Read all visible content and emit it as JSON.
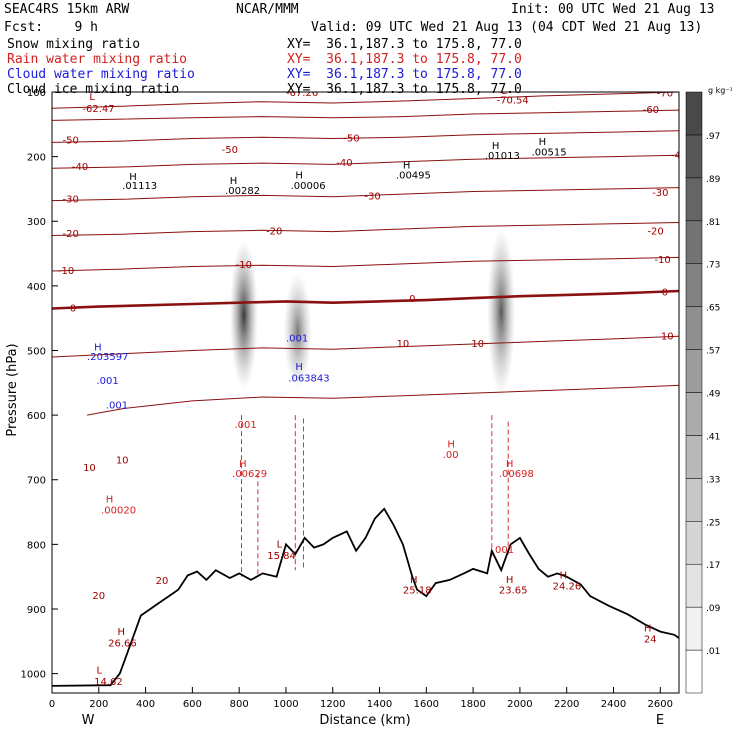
{
  "header": {
    "model": "SEAC4RS 15km ARW",
    "org": "NCAR/MMM",
    "init": "Init: 00 UTC Wed 21 Aug 13",
    "fcst": "Fcst:    9 h",
    "valid": "Valid: 09 UTC Wed 21 Aug 13 (04 CDT Wed 21 Aug 13)"
  },
  "fields": [
    {
      "name": "Snow mixing ratio",
      "xy": "XY=  36.1,187.3 to 175.8, 77.0",
      "color": "#000000"
    },
    {
      "name": "Rain water mixing ratio",
      "xy": "XY=  36.1,187.3 to 175.8, 77.0",
      "color": "#d42020"
    },
    {
      "name": "Cloud water mixing ratio",
      "xy": "XY=  36.1,187.3 to 175.8, 77.0",
      "color": "#1a1ad8"
    },
    {
      "name": "Cloud ice mixing ratio",
      "xy": "XY=  36.1,187.3 to 175.8, 77.0",
      "color": "#000000"
    }
  ],
  "chart_data": {
    "type": "cross-section",
    "xlabel": "Distance (km)",
    "ylabel": "Pressure (hPa)",
    "xlim": [
      0,
      2680
    ],
    "ylim": [
      1030,
      100
    ],
    "xticks": [
      0,
      200,
      400,
      600,
      800,
      1000,
      1200,
      1400,
      1600,
      1800,
      2000,
      2200,
      2400,
      2600
    ],
    "yticks": [
      1000,
      900,
      800,
      700,
      600,
      500,
      400,
      300,
      200,
      100
    ],
    "ytick_labels": [
      "1000",
      "900",
      "800",
      "700",
      "600",
      "500",
      "400",
      "300",
      "200",
      "100"
    ],
    "x_end_labels": {
      "left": "W",
      "right": "E"
    },
    "colorbar": {
      "unit": "g kg⁻¹",
      "labels": [
        ".01",
        ".09",
        ".17",
        ".25",
        ".33",
        ".41",
        ".49",
        ".57",
        ".65",
        ".73",
        ".81",
        ".89",
        ".97"
      ],
      "colors": [
        "#ffffff",
        "#f1f1f1",
        "#e3e3e3",
        "#d5d5d5",
        "#c7c7c7",
        "#b9b9b9",
        "#ababab",
        "#9d9d9d",
        "#8f8f8f",
        "#818181",
        "#737373",
        "#656565",
        "#575757",
        "#494949"
      ]
    },
    "isotherms": [
      {
        "value": -70,
        "label": "-70",
        "points": [
          [
            0,
            125
          ],
          [
            300,
            122
          ],
          [
            600,
            118
          ],
          [
            900,
            115
          ],
          [
            1200,
            117
          ],
          [
            1500,
            114
          ],
          [
            1800,
            110
          ],
          [
            2100,
            106
          ],
          [
            2400,
            103
          ],
          [
            2680,
            100
          ]
        ]
      },
      {
        "value": -60,
        "label": "-60",
        "points": [
          [
            0,
            144
          ],
          [
            300,
            142
          ],
          [
            600,
            140
          ],
          [
            900,
            138
          ],
          [
            1200,
            140
          ],
          [
            1500,
            138
          ],
          [
            1800,
            134
          ],
          [
            2100,
            132
          ],
          [
            2400,
            130
          ],
          [
            2680,
            128
          ]
        ]
      },
      {
        "value": -50,
        "label": "-50",
        "points": [
          [
            0,
            178
          ],
          [
            300,
            176
          ],
          [
            600,
            172
          ],
          [
            900,
            170
          ],
          [
            1200,
            172
          ],
          [
            1500,
            170
          ],
          [
            1800,
            166
          ],
          [
            2100,
            164
          ],
          [
            2400,
            162
          ],
          [
            2680,
            160
          ]
        ]
      },
      {
        "value": -40,
        "label": "-40",
        "points": [
          [
            0,
            218
          ],
          [
            300,
            216
          ],
          [
            600,
            212
          ],
          [
            900,
            210
          ],
          [
            1200,
            212
          ],
          [
            1500,
            208
          ],
          [
            1800,
            204
          ],
          [
            2100,
            202
          ],
          [
            2400,
            200
          ],
          [
            2680,
            198
          ]
        ]
      },
      {
        "value": -30,
        "label": "-30",
        "points": [
          [
            0,
            268
          ],
          [
            300,
            266
          ],
          [
            600,
            262
          ],
          [
            900,
            260
          ],
          [
            1200,
            262
          ],
          [
            1500,
            258
          ],
          [
            1800,
            254
          ],
          [
            2100,
            252
          ],
          [
            2400,
            250
          ],
          [
            2680,
            248
          ]
        ]
      },
      {
        "value": -20,
        "label": "-20",
        "points": [
          [
            0,
            322
          ],
          [
            300,
            320
          ],
          [
            600,
            316
          ],
          [
            900,
            314
          ],
          [
            1200,
            316
          ],
          [
            1500,
            312
          ],
          [
            1800,
            308
          ],
          [
            2100,
            306
          ],
          [
            2400,
            304
          ],
          [
            2680,
            302
          ]
        ]
      },
      {
        "value": -10,
        "label": "-10",
        "points": [
          [
            0,
            377
          ],
          [
            300,
            374
          ],
          [
            600,
            370
          ],
          [
            900,
            368
          ],
          [
            1200,
            370
          ],
          [
            1500,
            366
          ],
          [
            1800,
            362
          ],
          [
            2100,
            360
          ],
          [
            2400,
            358
          ],
          [
            2680,
            356
          ]
        ]
      },
      {
        "value": 0,
        "label": "0",
        "points": [
          [
            0,
            435
          ],
          [
            200,
            432
          ],
          [
            400,
            430
          ],
          [
            600,
            428
          ],
          [
            800,
            426
          ],
          [
            1000,
            424
          ],
          [
            1200,
            426
          ],
          [
            1400,
            424
          ],
          [
            1600,
            422
          ],
          [
            1800,
            419
          ],
          [
            2000,
            416
          ],
          [
            2200,
            414
          ],
          [
            2400,
            412
          ],
          [
            2680,
            408
          ]
        ]
      },
      {
        "value": 10,
        "label": "10",
        "points": [
          [
            0,
            510
          ],
          [
            300,
            505
          ],
          [
            600,
            500
          ],
          [
            900,
            496
          ],
          [
            1200,
            498
          ],
          [
            1500,
            494
          ],
          [
            1800,
            490
          ],
          [
            2100,
            486
          ],
          [
            2400,
            482
          ],
          [
            2680,
            478
          ]
        ]
      },
      {
        "value": 20,
        "label": "20",
        "points": [
          [
            150,
            600
          ],
          [
            300,
            590
          ],
          [
            600,
            578
          ],
          [
            900,
            572
          ],
          [
            1200,
            574
          ],
          [
            1500,
            570
          ],
          [
            1800,
            566
          ],
          [
            2100,
            562
          ],
          [
            2400,
            558
          ],
          [
            2680,
            554
          ]
        ]
      }
    ],
    "terrain": [
      [
        0,
        1019
      ],
      [
        250,
        1018
      ],
      [
        290,
        1000
      ],
      [
        330,
        960
      ],
      [
        380,
        910
      ],
      [
        420,
        900
      ],
      [
        460,
        890
      ],
      [
        500,
        880
      ],
      [
        540,
        870
      ],
      [
        580,
        848
      ],
      [
        620,
        842
      ],
      [
        660,
        855
      ],
      [
        700,
        840
      ],
      [
        760,
        852
      ],
      [
        800,
        845
      ],
      [
        850,
        855
      ],
      [
        900,
        845
      ],
      [
        960,
        850
      ],
      [
        1000,
        800
      ],
      [
        1040,
        815
      ],
      [
        1080,
        790
      ],
      [
        1120,
        805
      ],
      [
        1160,
        800
      ],
      [
        1200,
        790
      ],
      [
        1260,
        780
      ],
      [
        1300,
        810
      ],
      [
        1340,
        790
      ],
      [
        1380,
        760
      ],
      [
        1420,
        745
      ],
      [
        1460,
        770
      ],
      [
        1500,
        800
      ],
      [
        1540,
        850
      ],
      [
        1560,
        870
      ],
      [
        1600,
        880
      ],
      [
        1640,
        860
      ],
      [
        1700,
        855
      ],
      [
        1760,
        845
      ],
      [
        1800,
        838
      ],
      [
        1860,
        845
      ],
      [
        1880,
        810
      ],
      [
        1920,
        840
      ],
      [
        1960,
        800
      ],
      [
        2000,
        790
      ],
      [
        2040,
        815
      ],
      [
        2080,
        838
      ],
      [
        2120,
        850
      ],
      [
        2160,
        845
      ],
      [
        2200,
        850
      ],
      [
        2260,
        862
      ],
      [
        2300,
        880
      ],
      [
        2380,
        895
      ],
      [
        2460,
        908
      ],
      [
        2540,
        925
      ],
      [
        2600,
        935
      ],
      [
        2660,
        940
      ],
      [
        2680,
        945
      ]
    ],
    "annotations": [
      {
        "text": "L",
        "x": 160,
        "y": 112,
        "color": "#a00000"
      },
      {
        "text": "-62.47",
        "x": 130,
        "y": 131,
        "color": "#a00000"
      },
      {
        "text": "-67.26",
        "x": 1000,
        "y": 106,
        "color": "#a00000"
      },
      {
        "text": "L",
        "x": 1920,
        "y": 103,
        "color": "#a00000"
      },
      {
        "text": "-70.54",
        "x": 1900,
        "y": 118,
        "color": "#a00000"
      },
      {
        "text": "H",
        "x": 330,
        "y": 236,
        "color": "#000"
      },
      {
        "text": ".01113",
        "x": 300,
        "y": 250,
        "color": "#000"
      },
      {
        "text": "H",
        "x": 760,
        "y": 242,
        "color": "#000"
      },
      {
        "text": ".00282",
        "x": 740,
        "y": 258,
        "color": "#000"
      },
      {
        "text": "H",
        "x": 1040,
        "y": 234,
        "color": "#000"
      },
      {
        "text": ".00006",
        "x": 1020,
        "y": 250,
        "color": "#000"
      },
      {
        "text": "H",
        "x": 1500,
        "y": 218,
        "color": "#000"
      },
      {
        "text": ".00495",
        "x": 1470,
        "y": 234,
        "color": "#000"
      },
      {
        "text": "H",
        "x": 1880,
        "y": 188,
        "color": "#000"
      },
      {
        "text": ".01013",
        "x": 1850,
        "y": 204,
        "color": "#000"
      },
      {
        "text": "H",
        "x": 2080,
        "y": 182,
        "color": "#000"
      },
      {
        "text": ".00515",
        "x": 2050,
        "y": 198,
        "color": "#000"
      },
      {
        "text": "H",
        "x": 180,
        "y": 500,
        "color": "#1a1ad8"
      },
      {
        "text": ".203597",
        "x": 150,
        "y": 515,
        "color": "#1a1ad8"
      },
      {
        "text": ".001",
        "x": 190,
        "y": 552,
        "color": "#1a1ad8"
      },
      {
        "text": ".001",
        "x": 230,
        "y": 590,
        "color": "#1a1ad8"
      },
      {
        "text": ".001",
        "x": 1000,
        "y": 486,
        "color": "#1a1ad8"
      },
      {
        "text": "H",
        "x": 1040,
        "y": 530,
        "color": "#1a1ad8"
      },
      {
        "text": ".063843",
        "x": 1010,
        "y": 548,
        "color": "#1a1ad8"
      },
      {
        "text": ".001",
        "x": 780,
        "y": 620,
        "color": "#d42020"
      },
      {
        "text": "H",
        "x": 800,
        "y": 680,
        "color": "#d42020"
      },
      {
        "text": ".00629",
        "x": 770,
        "y": 696,
        "color": "#d42020"
      },
      {
        "text": "H",
        "x": 230,
        "y": 735,
        "color": "#d42020"
      },
      {
        "text": ".00020",
        "x": 210,
        "y": 752,
        "color": "#d42020"
      },
      {
        "text": "H",
        "x": 1690,
        "y": 650,
        "color": "#d42020"
      },
      {
        "text": ".00",
        "x": 1670,
        "y": 666,
        "color": "#d42020"
      },
      {
        "text": "H",
        "x": 1940,
        "y": 680,
        "color": "#d42020"
      },
      {
        "text": ".00698",
        "x": 1910,
        "y": 696,
        "color": "#d42020"
      },
      {
        "text": ".001",
        "x": 1880,
        "y": 813,
        "color": "#d42020"
      },
      {
        "text": "L",
        "x": 960,
        "y": 805,
        "color": "#a00000"
      },
      {
        "text": "15.84",
        "x": 920,
        "y": 823,
        "color": "#a00000"
      },
      {
        "text": "H",
        "x": 1530,
        "y": 860,
        "color": "#a00000"
      },
      {
        "text": "25.18",
        "x": 1500,
        "y": 876,
        "color": "#a00000"
      },
      {
        "text": "H",
        "x": 1940,
        "y": 860,
        "color": "#a00000"
      },
      {
        "text": "23.65",
        "x": 1910,
        "y": 876,
        "color": "#a00000"
      },
      {
        "text": "H",
        "x": 2170,
        "y": 853,
        "color": "#a00000"
      },
      {
        "text": "24.26",
        "x": 2140,
        "y": 870,
        "color": "#a00000"
      },
      {
        "text": "H",
        "x": 280,
        "y": 940,
        "color": "#a00000"
      },
      {
        "text": "26.66",
        "x": 240,
        "y": 958,
        "color": "#a00000"
      },
      {
        "text": "L",
        "x": 190,
        "y": 1000,
        "color": "#a00000"
      },
      {
        "text": "14.62",
        "x": 180,
        "y": 1018,
        "color": "#a00000"
      },
      {
        "text": "H",
        "x": 2530,
        "y": 935,
        "color": "#a00000"
      },
      {
        "text": "24",
        "x": 2530,
        "y": 952,
        "color": "#a00000"
      }
    ],
    "isotherm_labels": [
      {
        "text": "-50",
        "x": 80,
        "y": 175
      },
      {
        "text": "-40",
        "x": 120,
        "y": 216
      },
      {
        "text": "-30",
        "x": 80,
        "y": 266
      },
      {
        "text": "-20",
        "x": 80,
        "y": 320
      },
      {
        "text": "-10",
        "x": 60,
        "y": 377
      },
      {
        "text": "0",
        "x": 90,
        "y": 435
      },
      {
        "text": "10",
        "x": 160,
        "y": 682
      },
      {
        "text": "10",
        "x": 300,
        "y": 670
      },
      {
        "text": "20",
        "x": 200,
        "y": 880
      },
      {
        "text": "20",
        "x": 470,
        "y": 857
      },
      {
        "text": "-50",
        "x": 760,
        "y": 190
      },
      {
        "text": "-50",
        "x": 1280,
        "y": 172
      },
      {
        "text": "-40",
        "x": 1250,
        "y": 210
      },
      {
        "text": "-40",
        "x": 2680,
        "y": 198
      },
      {
        "text": "-30",
        "x": 1370,
        "y": 262
      },
      {
        "text": "-30",
        "x": 2600,
        "y": 256
      },
      {
        "text": "-20",
        "x": 950,
        "y": 316
      },
      {
        "text": "-20",
        "x": 2580,
        "y": 316
      },
      {
        "text": "-10",
        "x": 2610,
        "y": 360
      },
      {
        "text": "-10",
        "x": 820,
        "y": 368
      },
      {
        "text": "0",
        "x": 1540,
        "y": 420
      },
      {
        "text": "0",
        "x": 2620,
        "y": 410
      },
      {
        "text": "10",
        "x": 1500,
        "y": 490
      },
      {
        "text": "10",
        "x": 1820,
        "y": 490
      },
      {
        "text": "10",
        "x": 2630,
        "y": 478
      },
      {
        "text": "-70",
        "x": 2620,
        "y": 102
      },
      {
        "text": "-60",
        "x": 2560,
        "y": 128
      }
    ],
    "shading_columns": [
      {
        "x": 820,
        "top": 330,
        "bottom": 560,
        "peak": 0.97
      },
      {
        "x": 1050,
        "top": 380,
        "bottom": 560,
        "peak": 0.65
      },
      {
        "x": 1920,
        "top": 310,
        "bottom": 570,
        "peak": 0.81
      }
    ],
    "rain_dash_columns": [
      [
        810,
        600,
        850
      ],
      [
        880,
        690,
        850
      ],
      [
        1040,
        600,
        840
      ],
      [
        1075,
        605,
        840
      ],
      [
        1880,
        600,
        820
      ],
      [
        1950,
        610,
        820
      ]
    ]
  }
}
